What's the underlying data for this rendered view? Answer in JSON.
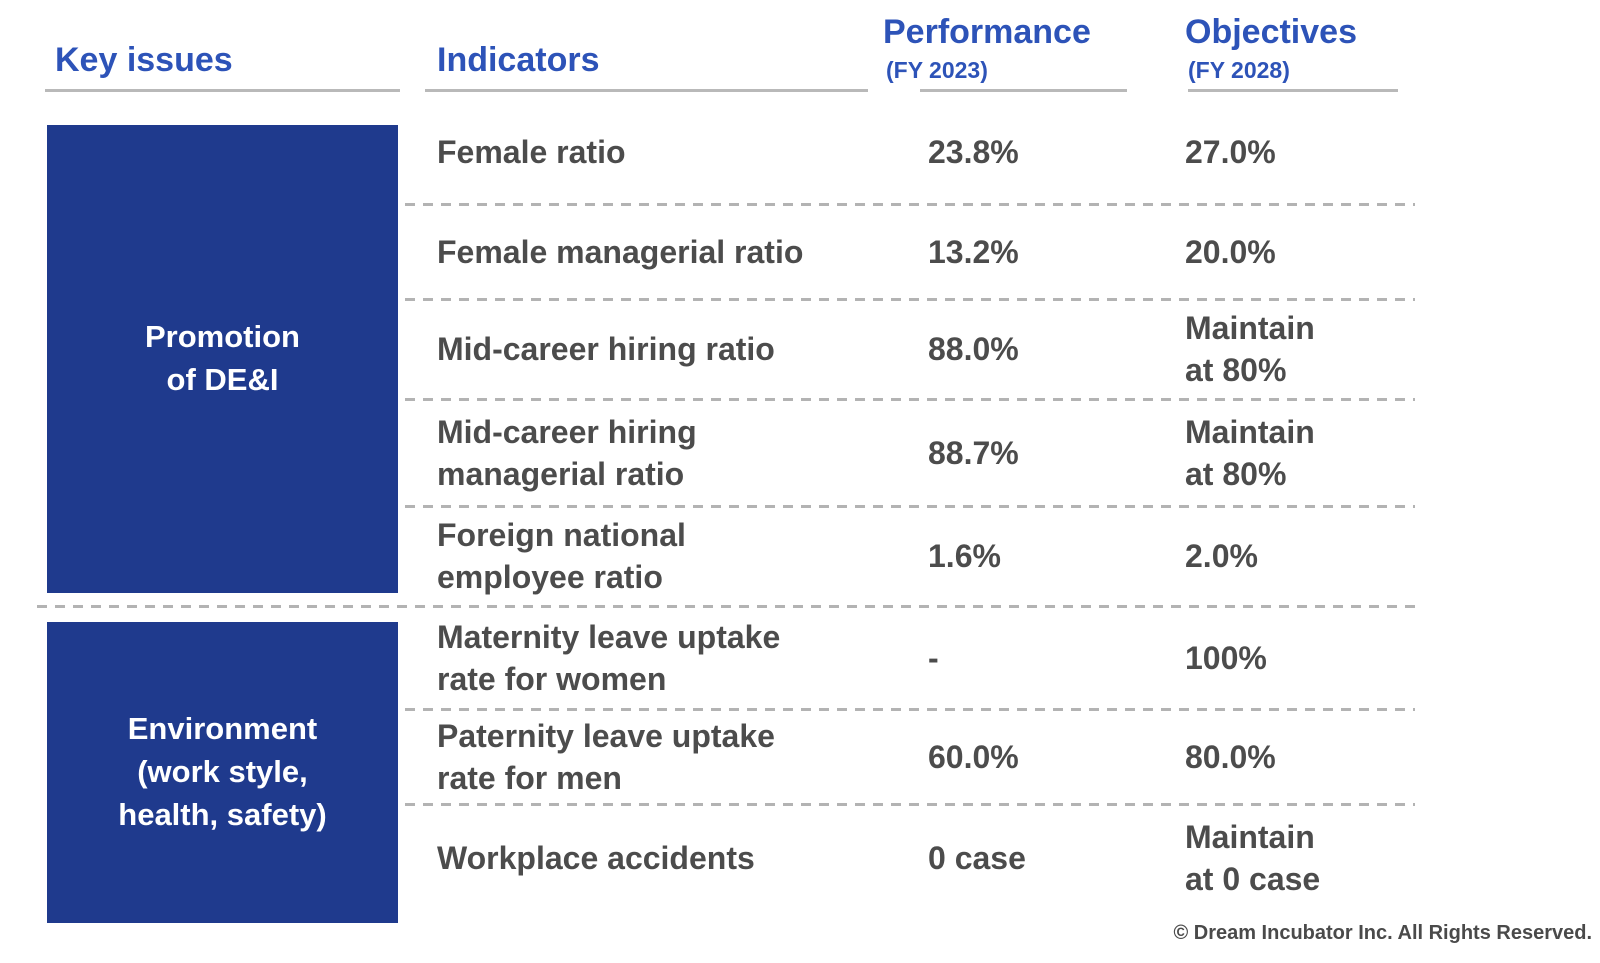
{
  "theme": {
    "block_blue": "#1f3a8d",
    "header_blue": "#2d53b8",
    "text_gray": "#4c4c4c",
    "line_gray": "#b3b3b3"
  },
  "columns": {
    "key_issues": "Key issues",
    "indicators": "Indicators",
    "performance": {
      "title": "Performance",
      "subtitle": "(FY 2023)"
    },
    "objectives": {
      "title": "Objectives",
      "subtitle": "(FY 2028)"
    }
  },
  "key_issues": [
    {
      "label": "Promotion\nof DE&I"
    },
    {
      "label": "Environment\n(work style,\nhealth, safety)"
    }
  ],
  "rows": [
    {
      "indicator": "Female ratio",
      "performance": "23.8%",
      "objective": "27.0%"
    },
    {
      "indicator": "Female managerial ratio",
      "performance": "13.2%",
      "objective": "20.0%"
    },
    {
      "indicator": "Mid-career hiring ratio",
      "performance": "88.0%",
      "objective": "Maintain\nat 80%"
    },
    {
      "indicator": "Mid-career hiring\nmanagerial ratio",
      "performance": "88.7%",
      "objective": "Maintain\nat 80%"
    },
    {
      "indicator": "Foreign national\nemployee ratio",
      "performance": "1.6%",
      "objective": "2.0%"
    },
    {
      "indicator": "Maternity leave uptake\nrate for women",
      "performance": "-",
      "objective": "100%"
    },
    {
      "indicator": "Paternity leave uptake\nrate for men",
      "performance": "60.0%",
      "objective": "80.0%"
    },
    {
      "indicator": "Workplace accidents",
      "performance": "0 case",
      "objective": "Maintain\nat 0 case"
    }
  ],
  "footer": {
    "copyright": "© Dream Incubator Inc. All Rights Reserved."
  }
}
